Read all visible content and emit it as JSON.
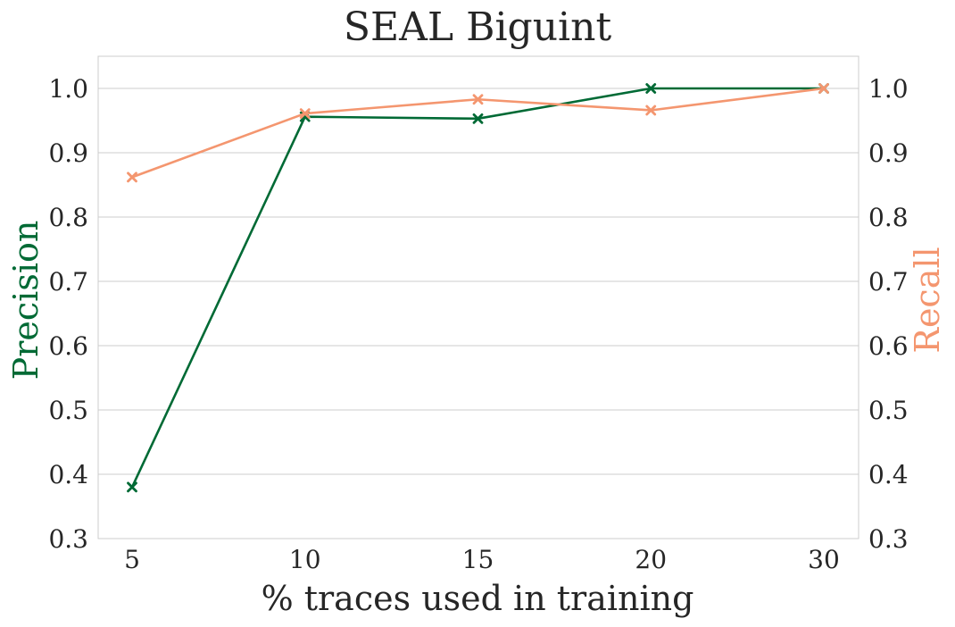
{
  "chart_data": {
    "type": "line",
    "title": "SEAL Biguint",
    "xlabel": "% traces used in training",
    "ylabel_left": "Precision",
    "ylabel_right": "Recall",
    "categories": [
      "5",
      "10",
      "15",
      "20",
      "30"
    ],
    "ylim": [
      0.3,
      1.05
    ],
    "yticks": [
      "0.3",
      "0.4",
      "0.5",
      "0.6",
      "0.7",
      "0.8",
      "0.9",
      "1.0"
    ],
    "grid": "horizontal",
    "series": [
      {
        "name": "Precision",
        "axis": "left",
        "color": "#006a35",
        "marker": "x",
        "values": [
          0.38,
          0.956,
          0.953,
          1.0,
          1.0
        ]
      },
      {
        "name": "Recall",
        "axis": "right",
        "color": "#f4966f",
        "marker": "x",
        "values": [
          0.862,
          0.961,
          0.983,
          0.966,
          1.0
        ]
      }
    ]
  }
}
